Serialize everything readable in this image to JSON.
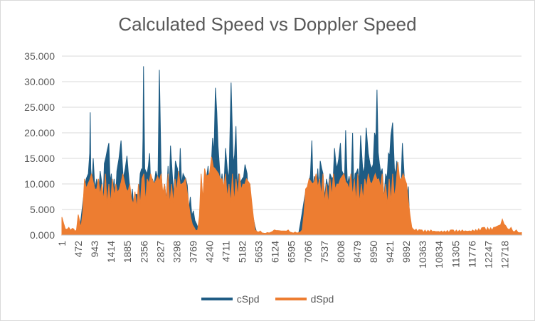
{
  "chart_data": {
    "type": "area",
    "title": "Calculated Speed vs Doppler Speed",
    "xlabel": "",
    "ylabel": "",
    "ylim": [
      0,
      35
    ],
    "yticks": [
      "0.000",
      "5.000",
      "10.000",
      "15.000",
      "20.000",
      "25.000",
      "30.000",
      "35.000"
    ],
    "xlim": [
      1,
      13200
    ],
    "xticks": [
      "1",
      "472",
      "943",
      "1414",
      "1885",
      "2356",
      "2827",
      "3298",
      "3769",
      "4240",
      "4711",
      "5182",
      "5653",
      "6124",
      "6595",
      "7066",
      "7537",
      "8008",
      "8479",
      "8950",
      "9421",
      "9892",
      "10363",
      "10834",
      "11305",
      "11776",
      "12247",
      "12718"
    ],
    "grid": true,
    "legend_position": "bottom",
    "series": [
      {
        "name": "cSpd",
        "color": "#1f5c84",
        "points": [
          [
            1,
            0.5
          ],
          [
            500,
            0.8
          ],
          [
            650,
            9
          ],
          [
            700,
            11
          ],
          [
            760,
            12
          ],
          [
            800,
            16
          ],
          [
            815,
            24
          ],
          [
            830,
            13
          ],
          [
            900,
            15
          ],
          [
            1000,
            11
          ],
          [
            1100,
            12.5
          ],
          [
            1150,
            10
          ],
          [
            1220,
            14
          ],
          [
            1300,
            16.5
          ],
          [
            1350,
            18
          ],
          [
            1420,
            12
          ],
          [
            1500,
            11
          ],
          [
            1580,
            12.5
          ],
          [
            1640,
            15
          ],
          [
            1700,
            18.5
          ],
          [
            1760,
            11
          ],
          [
            1820,
            13
          ],
          [
            1870,
            15.5
          ],
          [
            1940,
            10
          ],
          [
            2150,
            8
          ],
          [
            2250,
            12
          ],
          [
            2290,
            13
          ],
          [
            2310,
            11.5
          ],
          [
            2330,
            19
          ],
          [
            2345,
            33
          ],
          [
            2380,
            13
          ],
          [
            2450,
            12
          ],
          [
            2520,
            16
          ],
          [
            2600,
            11
          ],
          [
            2700,
            12.5
          ],
          [
            2760,
            11
          ],
          [
            2800,
            32.3
          ],
          [
            2850,
            13
          ],
          [
            2950,
            10
          ],
          [
            3050,
            13.5
          ],
          [
            3120,
            17.5
          ],
          [
            3180,
            11
          ],
          [
            3260,
            14.5
          ],
          [
            3320,
            13
          ],
          [
            3400,
            17
          ],
          [
            3480,
            12
          ],
          [
            3560,
            11
          ],
          [
            3950,
            0.6
          ],
          [
            4100,
            10
          ],
          [
            4200,
            13.5
          ],
          [
            4280,
            12
          ],
          [
            4330,
            19
          ],
          [
            4370,
            16
          ],
          [
            4410,
            28.8
          ],
          [
            4450,
            24
          ],
          [
            4520,
            14
          ],
          [
            4600,
            12
          ],
          [
            4700,
            17
          ],
          [
            4750,
            13
          ],
          [
            4800,
            11
          ],
          [
            4860,
            29.8
          ],
          [
            4920,
            14
          ],
          [
            5000,
            21.3
          ],
          [
            5080,
            12
          ],
          [
            5180,
            11
          ],
          [
            5260,
            13.8
          ],
          [
            5320,
            12
          ],
          [
            5400,
            10
          ],
          [
            5600,
            0.4
          ],
          [
            6800,
            0.3
          ],
          [
            7000,
            8.5
          ],
          [
            7100,
            10
          ],
          [
            7180,
            18.5
          ],
          [
            7250,
            11.5
          ],
          [
            7350,
            13
          ],
          [
            7420,
            14.5
          ],
          [
            7500,
            12
          ],
          [
            7600,
            11
          ],
          [
            7700,
            12
          ],
          [
            7760,
            11
          ],
          [
            7830,
            17
          ],
          [
            7900,
            13
          ],
          [
            8000,
            18
          ],
          [
            8080,
            12
          ],
          [
            8150,
            20.5
          ],
          [
            8250,
            11.5
          ],
          [
            8350,
            20
          ],
          [
            8420,
            12
          ],
          [
            8500,
            13
          ],
          [
            8580,
            19.5
          ],
          [
            8650,
            12
          ],
          [
            8740,
            21
          ],
          [
            8800,
            16
          ],
          [
            8900,
            13
          ],
          [
            8980,
            20
          ],
          [
            9020,
            19
          ],
          [
            9050,
            28.4
          ],
          [
            9120,
            14
          ],
          [
            9200,
            13
          ],
          [
            9300,
            12
          ],
          [
            9380,
            16
          ],
          [
            9450,
            19.5
          ],
          [
            9500,
            22
          ],
          [
            9550,
            13
          ],
          [
            9620,
            14.5
          ],
          [
            9700,
            11
          ],
          [
            9780,
            18
          ],
          [
            9840,
            10.5
          ],
          [
            9950,
            9.5
          ],
          [
            10000,
            0.4
          ],
          [
            13200,
            0.3
          ]
        ]
      },
      {
        "name": "dSpd",
        "color": "#ed7d31",
        "points": [
          [
            1,
            3.5
          ],
          [
            100,
            1.2
          ],
          [
            200,
            1.5
          ],
          [
            300,
            1.3
          ],
          [
            420,
            1.0
          ],
          [
            470,
            4.0
          ],
          [
            550,
            1.5
          ],
          [
            650,
            11
          ],
          [
            750,
            10
          ],
          [
            850,
            12
          ],
          [
            950,
            9
          ],
          [
            1050,
            11
          ],
          [
            1150,
            10
          ],
          [
            1250,
            12
          ],
          [
            1350,
            10
          ],
          [
            1450,
            11
          ],
          [
            1550,
            10
          ],
          [
            1650,
            9
          ],
          [
            1750,
            12
          ],
          [
            1850,
            9
          ],
          [
            1950,
            10
          ],
          [
            2100,
            8.5
          ],
          [
            2200,
            10
          ],
          [
            2300,
            11
          ],
          [
            2356,
            12
          ],
          [
            2450,
            11
          ],
          [
            2550,
            12
          ],
          [
            2650,
            10
          ],
          [
            2750,
            11.5
          ],
          [
            2850,
            12
          ],
          [
            2950,
            10
          ],
          [
            3050,
            12
          ],
          [
            3150,
            10
          ],
          [
            3250,
            11
          ],
          [
            3350,
            12.5
          ],
          [
            3450,
            10
          ],
          [
            3550,
            11
          ],
          [
            3700,
            3.5
          ],
          [
            3800,
            1.5
          ],
          [
            3900,
            1.0
          ],
          [
            4000,
            12
          ],
          [
            4100,
            13
          ],
          [
            4240,
            12
          ],
          [
            4300,
            15.3
          ],
          [
            4400,
            13
          ],
          [
            4500,
            12
          ],
          [
            4600,
            11
          ],
          [
            4700,
            12
          ],
          [
            4800,
            10
          ],
          [
            4900,
            12
          ],
          [
            5000,
            11
          ],
          [
            5100,
            12
          ],
          [
            5200,
            10
          ],
          [
            5300,
            11
          ],
          [
            5400,
            10
          ],
          [
            5550,
            1.0
          ],
          [
            5700,
            0.8
          ],
          [
            5900,
            0.5
          ],
          [
            6100,
            1.0
          ],
          [
            6300,
            0.8
          ],
          [
            6500,
            1.0
          ],
          [
            6700,
            0.6
          ],
          [
            6900,
            1.0
          ],
          [
            7000,
            9
          ],
          [
            7100,
            11
          ],
          [
            7200,
            10
          ],
          [
            7300,
            12
          ],
          [
            7400,
            11
          ],
          [
            7500,
            12
          ],
          [
            7600,
            10
          ],
          [
            7700,
            11
          ],
          [
            7800,
            12
          ],
          [
            7900,
            10
          ],
          [
            8000,
            11
          ],
          [
            8100,
            12
          ],
          [
            8200,
            10
          ],
          [
            8300,
            12
          ],
          [
            8400,
            11
          ],
          [
            8500,
            12
          ],
          [
            8600,
            10
          ],
          [
            8700,
            11
          ],
          [
            8800,
            12
          ],
          [
            8900,
            10
          ],
          [
            9000,
            12
          ],
          [
            9100,
            11
          ],
          [
            9200,
            12
          ],
          [
            9300,
            10
          ],
          [
            9400,
            11
          ],
          [
            9500,
            12
          ],
          [
            9600,
            10
          ],
          [
            9650,
            14.3
          ],
          [
            9700,
            11
          ],
          [
            9800,
            12
          ],
          [
            9900,
            10
          ],
          [
            10050,
            1.5
          ],
          [
            10300,
            1.0
          ],
          [
            10600,
            1.0
          ],
          [
            10900,
            0.8
          ],
          [
            11200,
            1.0
          ],
          [
            11500,
            1.0
          ],
          [
            11800,
            1.0
          ],
          [
            12100,
            1.5
          ],
          [
            12400,
            1.5
          ],
          [
            12600,
            2.0
          ],
          [
            12650,
            3.1
          ],
          [
            12750,
            1.8
          ],
          [
            12900,
            1.5
          ],
          [
            13050,
            1.0
          ],
          [
            13200,
            0.5
          ]
        ]
      }
    ]
  }
}
